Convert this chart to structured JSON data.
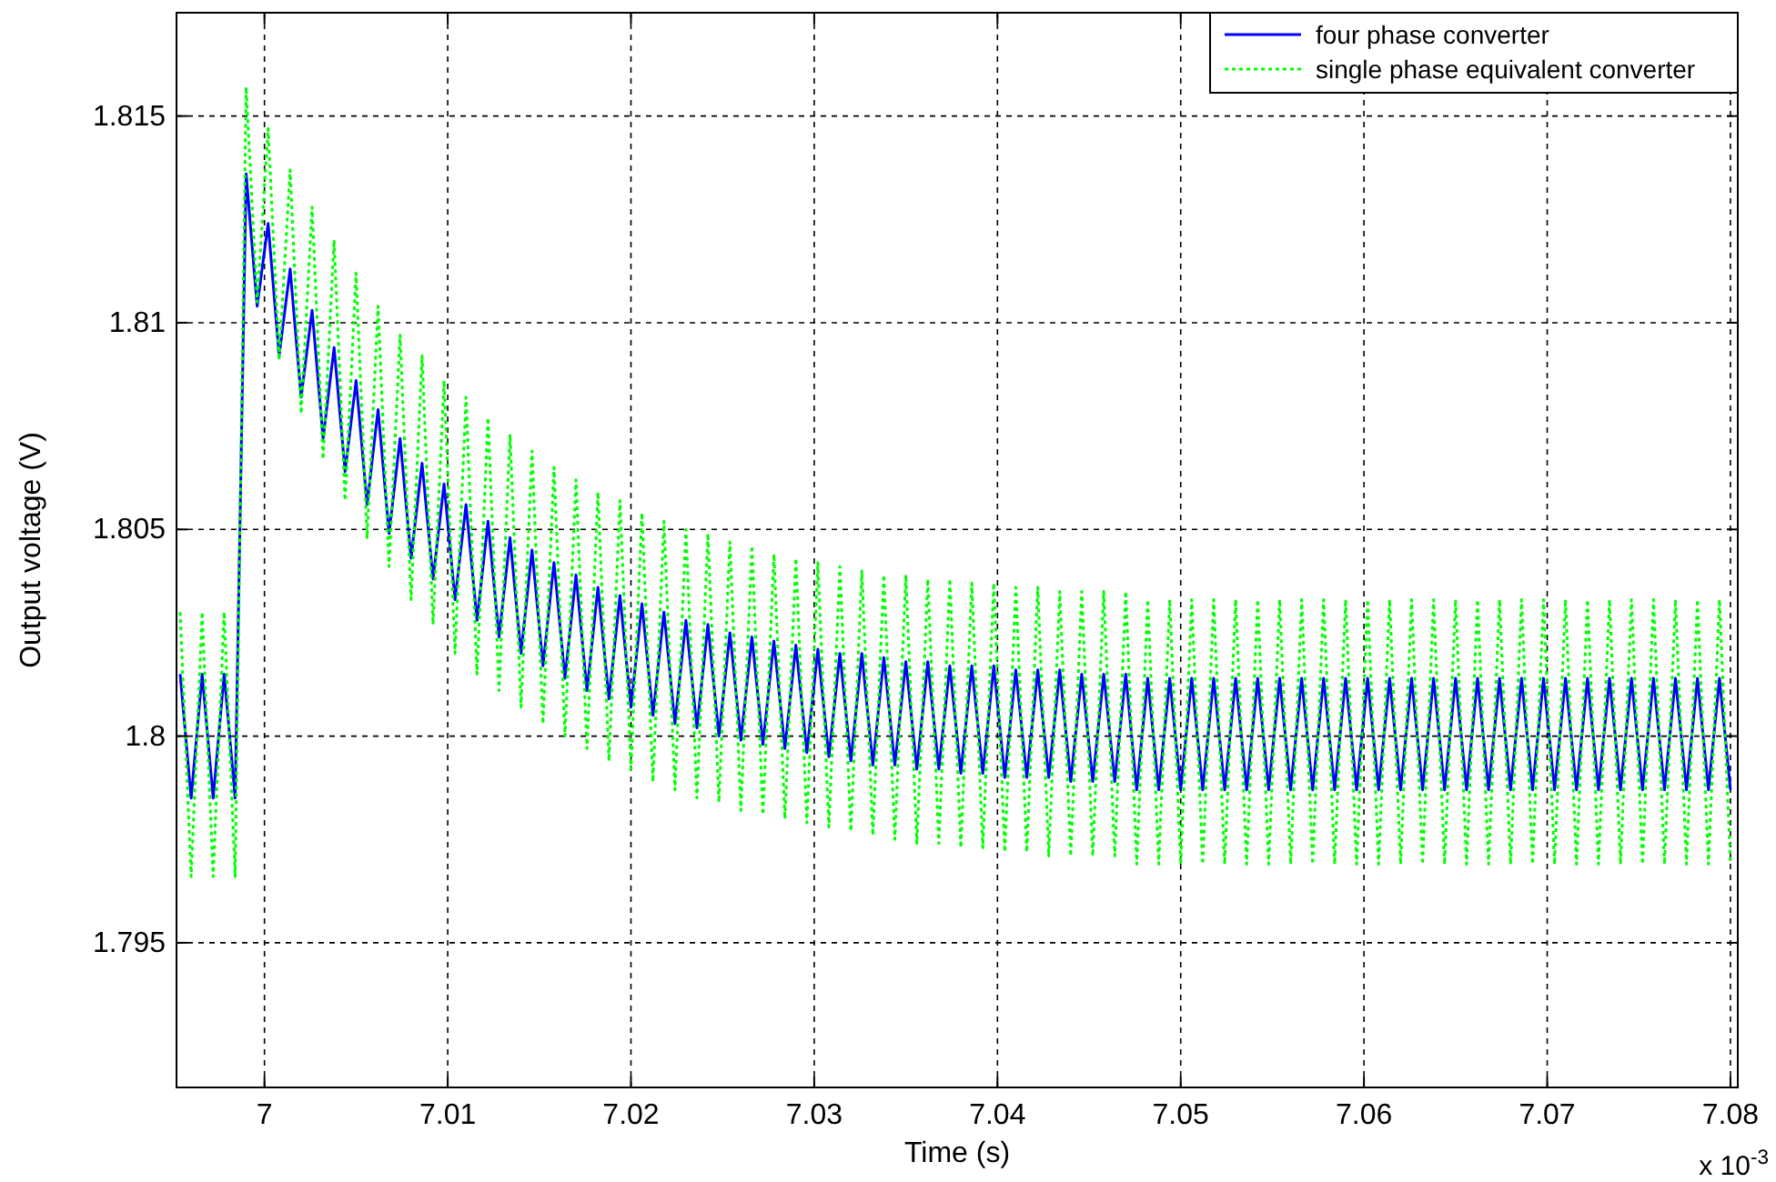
{
  "chart_data": {
    "type": "line",
    "xlabel": "Time (s)",
    "ylabel": "Output voltage (V)",
    "annotations": [
      "x 10$^{-3}$"
    ],
    "xlim": [
      6.9952,
      7.0804
    ],
    "ylim": [
      1.7915,
      1.8175
    ],
    "xticks": [
      7,
      7.01,
      7.02,
      7.03,
      7.04,
      7.05,
      7.06,
      7.07,
      7.08
    ],
    "yticks": [
      1.795,
      1.8,
      1.805,
      1.81,
      1.815
    ],
    "grid": true,
    "legend": "top right",
    "x": [
      6.9954,
      6.996,
      6.9966,
      6.9972,
      6.9978,
      6.9984,
      6.999,
      6.9996,
      7.0002,
      7.0008,
      7.0014,
      7.002,
      7.0026,
      7.0032,
      7.0038,
      7.0044,
      7.005,
      7.0056,
      7.0062,
      7.0068,
      7.0074,
      7.008,
      7.0086,
      7.0092,
      7.0098,
      7.0104,
      7.011,
      7.0116,
      7.0122,
      7.0128,
      7.0134,
      7.014,
      7.0146,
      7.0152,
      7.0158,
      7.0164,
      7.017,
      7.0176,
      7.0182,
      7.0188,
      7.0194,
      7.02,
      7.0206,
      7.0212,
      7.0218,
      7.0224,
      7.023,
      7.0236,
      7.0242,
      7.0248,
      7.0254,
      7.026,
      7.0266,
      7.0272,
      7.0278,
      7.0284,
      7.029,
      7.0296,
      7.0302,
      7.0308,
      7.0314,
      7.032,
      7.0326,
      7.0332,
      7.0338,
      7.0344,
      7.035,
      7.0356,
      7.0362,
      7.0368,
      7.0374,
      7.038,
      7.0386,
      7.0392,
      7.0398,
      7.0404,
      7.041,
      7.0416,
      7.0422,
      7.0428,
      7.0434,
      7.044,
      7.0446,
      7.0452,
      7.0458,
      7.0464,
      7.047,
      7.0476,
      7.0482,
      7.0488,
      7.0494,
      7.05,
      7.0506,
      7.0512,
      7.0518,
      7.0524,
      7.053,
      7.0536,
      7.0542,
      7.0548,
      7.0554,
      7.056,
      7.0566,
      7.0572,
      7.0578,
      7.0584,
      7.059,
      7.0596,
      7.0602,
      7.0608,
      7.0614,
      7.062,
      7.0626,
      7.0632,
      7.0638,
      7.0644,
      7.065,
      7.0656,
      7.0662,
      7.0668,
      7.0674,
      7.068,
      7.0686,
      7.0692,
      7.0698,
      7.0704,
      7.071,
      7.0716,
      7.0722,
      7.0728,
      7.0734,
      7.074,
      7.0746,
      7.0752,
      7.0758,
      7.0764,
      7.077,
      7.0776,
      7.0782,
      7.0788,
      7.0794,
      7.08
    ],
    "series": [
      {
        "name": "four phase converter",
        "color": "#0000ff",
        "line_style": "solid",
        "values": [
          1.8015,
          1.7985,
          1.8015,
          1.7985,
          1.8015,
          1.7985,
          1.8136,
          1.8104,
          1.8124,
          1.8092,
          1.8113,
          1.8082,
          1.8103,
          1.8072,
          1.8094,
          1.8064,
          1.8086,
          1.8056,
          1.8079,
          1.8049,
          1.8072,
          1.8043,
          1.8066,
          1.8038,
          1.8061,
          1.8033,
          1.8056,
          1.8028,
          1.8052,
          1.8024,
          1.8048,
          1.802,
          1.8045,
          1.8017,
          1.8042,
          1.8014,
          1.8039,
          1.8011,
          1.8036,
          1.8009,
          1.8034,
          1.8007,
          1.8032,
          1.8005,
          1.803,
          1.8003,
          1.8028,
          1.8002,
          1.8027,
          1.8,
          1.8025,
          1.7999,
          1.8024,
          1.7998,
          1.8023,
          1.7997,
          1.8022,
          1.7996,
          1.8021,
          1.7995,
          1.802,
          1.7994,
          1.802,
          1.7993,
          1.8019,
          1.7993,
          1.8018,
          1.7992,
          1.8018,
          1.7992,
          1.8017,
          1.7991,
          1.8017,
          1.7991,
          1.8017,
          1.799,
          1.8016,
          1.799,
          1.8016,
          1.799,
          1.8016,
          1.7989,
          1.8015,
          1.7989,
          1.8015,
          1.7989,
          1.8015,
          1.7987,
          1.8014,
          1.7987,
          1.8014,
          1.7987,
          1.8014,
          1.7987,
          1.8014,
          1.7987,
          1.8014,
          1.7987,
          1.8014,
          1.7987,
          1.8014,
          1.7987,
          1.8014,
          1.7987,
          1.8014,
          1.7987,
          1.8014,
          1.7987,
          1.8014,
          1.7987,
          1.8014,
          1.7987,
          1.8014,
          1.7987,
          1.8014,
          1.7987,
          1.8014,
          1.7987,
          1.8014,
          1.7987,
          1.8014,
          1.7987,
          1.8014,
          1.7987,
          1.8014,
          1.7987,
          1.8014,
          1.7987,
          1.8014,
          1.7987,
          1.8014,
          1.7987,
          1.8014,
          1.7987,
          1.8014,
          1.7987,
          1.8014,
          1.7987,
          1.8014,
          1.7987,
          1.8014,
          1.7987
        ]
      },
      {
        "name": "single phase equivalent converter",
        "color": "#00ff00",
        "line_style": "dotted",
        "values": [
          1.803,
          1.7966,
          1.803,
          1.7966,
          1.803,
          1.7966,
          1.8157,
          1.8105,
          1.8147,
          1.8091,
          1.8137,
          1.8078,
          1.8128,
          1.8067,
          1.812,
          1.8057,
          1.8112,
          1.8048,
          1.8104,
          1.8041,
          1.8097,
          1.8033,
          1.8092,
          1.8027,
          1.8086,
          1.802,
          1.8082,
          1.8015,
          1.8077,
          1.8011,
          1.8073,
          1.8007,
          1.8069,
          1.8003,
          1.8065,
          1.8,
          1.8062,
          1.7997,
          1.8059,
          1.7994,
          1.8057,
          1.7992,
          1.8054,
          1.7989,
          1.8052,
          1.7987,
          1.805,
          1.7985,
          1.8049,
          1.7984,
          1.8047,
          1.7982,
          1.8046,
          1.7981,
          1.8044,
          1.798,
          1.8043,
          1.7979,
          1.8042,
          1.7978,
          1.8041,
          1.7977,
          1.804,
          1.7976,
          1.8039,
          1.7975,
          1.8039,
          1.7974,
          1.8038,
          1.7974,
          1.8038,
          1.7973,
          1.8037,
          1.7973,
          1.8037,
          1.7972,
          1.8036,
          1.7972,
          1.8036,
          1.7971,
          1.8035,
          1.7971,
          1.8035,
          1.7971,
          1.8035,
          1.7971,
          1.8035,
          1.7969,
          1.8033,
          1.7969,
          1.8033,
          1.7969,
          1.8033,
          1.7969,
          1.8033,
          1.7969,
          1.8033,
          1.7969,
          1.8033,
          1.7969,
          1.8033,
          1.7969,
          1.8033,
          1.7969,
          1.8033,
          1.7969,
          1.8033,
          1.7969,
          1.8033,
          1.7969,
          1.8033,
          1.7969,
          1.8033,
          1.7969,
          1.8033,
          1.7969,
          1.8033,
          1.7969,
          1.8033,
          1.7969,
          1.8033,
          1.7969,
          1.8033,
          1.7969,
          1.8033,
          1.7969,
          1.8033,
          1.7969,
          1.8033,
          1.7969,
          1.8033,
          1.7969,
          1.8033,
          1.7969,
          1.8033,
          1.7969,
          1.8033,
          1.7969,
          1.8033,
          1.7969,
          1.8033,
          1.7969
        ]
      }
    ]
  }
}
